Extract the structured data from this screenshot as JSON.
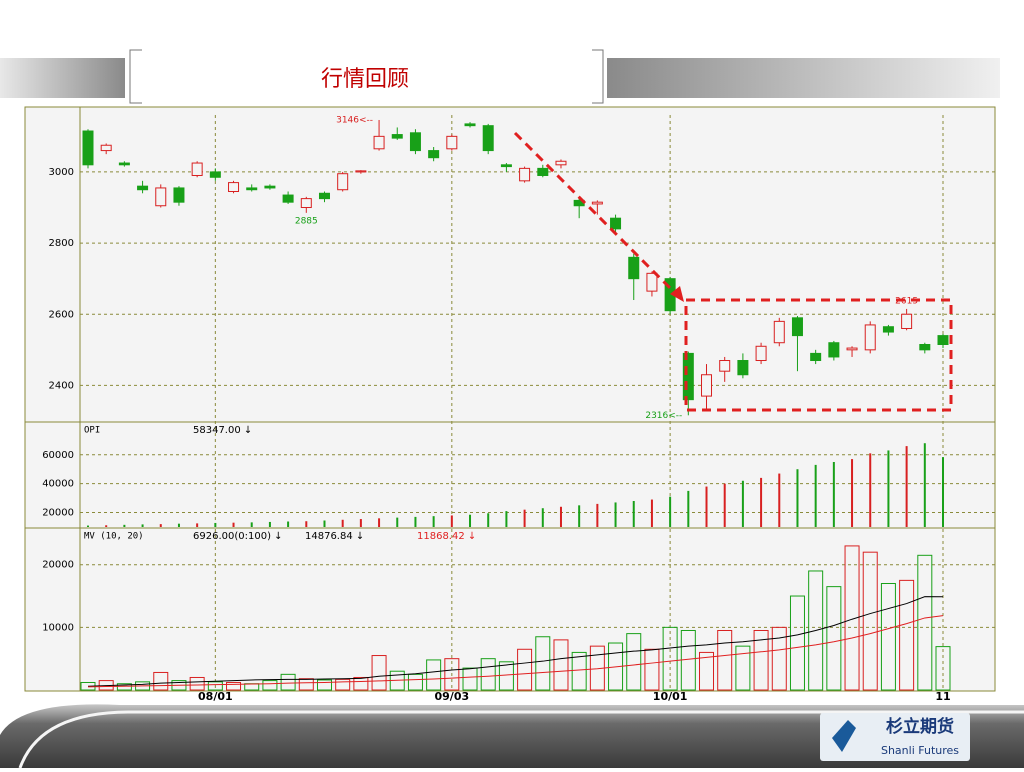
{
  "header": {
    "title": "行情回顾"
  },
  "logo": {
    "name": "杉立期货",
    "name_en": "Shanli Futures"
  },
  "chart_data": [
    {
      "type": "candlestick",
      "categories": [
        null,
        null,
        null,
        null,
        null,
        null,
        null,
        "08/01",
        null,
        null,
        null,
        null,
        null,
        null,
        null,
        null,
        null,
        null,
        null,
        null,
        "09/03",
        null,
        null,
        null,
        null,
        null,
        null,
        null,
        null,
        null,
        null,
        null,
        "10/01",
        null,
        null,
        null,
        null,
        null,
        null,
        null,
        null,
        null,
        null,
        null,
        null,
        null,
        null,
        "11"
      ],
      "open": [
        3115,
        3060,
        3025,
        2960,
        2905,
        2955,
        2990,
        3000,
        2945,
        2955,
        2960,
        2935,
        2900,
        2940,
        2950,
        3000,
        3065,
        3105,
        3110,
        3060,
        3065,
        3135,
        3130,
        3020,
        2975,
        3010,
        3020,
        2920,
        2910,
        2870,
        2760,
        2665,
        2700,
        2490,
        2370,
        2440,
        2470,
        2470,
        2520,
        2590,
        2490,
        2520,
        2500,
        2500,
        2565,
        2560,
        2515,
        2540
      ],
      "high": [
        3120,
        3080,
        3030,
        2975,
        2965,
        2960,
        3030,
        3010,
        2975,
        2965,
        2965,
        2945,
        2930,
        2945,
        3000,
        3005,
        3146,
        3125,
        3120,
        3070,
        3105,
        3140,
        3135,
        3025,
        3015,
        3020,
        3035,
        2930,
        2920,
        2880,
        2770,
        2720,
        2705,
        2495,
        2460,
        2480,
        2490,
        2520,
        2590,
        2595,
        2500,
        2525,
        2510,
        2580,
        2570,
        2615,
        2520,
        2545
      ],
      "low": [
        3010,
        3050,
        3015,
        2940,
        2900,
        2905,
        2985,
        2975,
        2940,
        2945,
        2950,
        2910,
        2885,
        2915,
        2945,
        2995,
        3060,
        3090,
        3050,
        3030,
        3060,
        3125,
        3050,
        3000,
        2970,
        2985,
        3010,
        2870,
        2880,
        2830,
        2640,
        2650,
        2600,
        2316,
        2330,
        2410,
        2420,
        2460,
        2510,
        2440,
        2460,
        2470,
        2480,
        2490,
        2540,
        2555,
        2490,
        2505
      ],
      "close": [
        3020,
        3075,
        3020,
        2950,
        2955,
        2915,
        3025,
        2985,
        2970,
        2950,
        2955,
        2915,
        2925,
        2925,
        2995,
        3003,
        3100,
        3095,
        3060,
        3040,
        3100,
        3130,
        3060,
        3015,
        3010,
        2990,
        3030,
        2905,
        2915,
        2840,
        2700,
        2715,
        2610,
        2360,
        2430,
        2470,
        2430,
        2510,
        2580,
        2540,
        2470,
        2480,
        2505,
        2570,
        2550,
        2600,
        2500,
        2515
      ],
      "up_color": "#d82020",
      "down_color": "#18a018",
      "ylim": [
        2300,
        3160
      ],
      "yticks": [
        2400,
        2600,
        2800,
        3000
      ],
      "grid": true,
      "annotations": [
        {
          "text": "3146<--",
          "value": 3146,
          "color": "#d82020"
        },
        {
          "text": "2885",
          "value": 2885,
          "color": "#18a018"
        },
        {
          "text": "2316<--",
          "value": 2316,
          "color": "#18a018"
        },
        {
          "text": "2615",
          "value": 2615,
          "color": "#d82020"
        }
      ]
    },
    {
      "type": "bar",
      "title": "OPI",
      "subtitle": "58347.00 ↓",
      "values": [
        11000,
        11200,
        11500,
        11800,
        12000,
        12300,
        12500,
        12800,
        13000,
        13200,
        13500,
        13800,
        14000,
        14500,
        15000,
        15500,
        16000,
        16500,
        17000,
        17500,
        18000,
        18500,
        19500,
        21000,
        22000,
        23000,
        24000,
        25000,
        26000,
        27000,
        28000,
        29000,
        31000,
        35000,
        38000,
        40000,
        42000,
        44000,
        47000,
        50000,
        53000,
        55000,
        57000,
        61000,
        63000,
        66000,
        68000,
        58347
      ],
      "ylim": [
        10000,
        82000
      ],
      "yticks": [
        20000,
        40000,
        60000
      ],
      "grid": true
    },
    {
      "type": "bar",
      "title": "MV (10, 20)",
      "series": [
        {
          "name": "6926.00(0:100) ↓",
          "color": "#000000",
          "values": [
            1200,
            1500,
            1000,
            1300,
            2800,
            1500,
            2000,
            1300,
            1200,
            1000,
            1500,
            2500,
            1800,
            1600,
            1700,
            2000,
            5500,
            3000,
            2500,
            4800,
            5000,
            3500,
            5000,
            4500,
            6500,
            8500,
            8000,
            6000,
            7000,
            7500,
            9000,
            6500,
            10000,
            9500,
            6000,
            9500,
            7000,
            9500,
            10000,
            15000,
            19000,
            16500,
            23000,
            22000,
            17000,
            17500,
            21500,
            6926
          ]
        },
        {
          "name": "14876.84 ↓",
          "color": "#000000",
          "values": [
            600,
            700,
            800,
            900,
            1100,
            1200,
            1300,
            1400,
            1500,
            1600,
            1650,
            1700,
            1700,
            1750,
            1800,
            1850,
            2200,
            2400,
            2600,
            2900,
            3200,
            3400,
            3700,
            4000,
            4300,
            4600,
            5000,
            5300,
            5600,
            5900,
            6200,
            6400,
            6700,
            7000,
            7200,
            7500,
            7700,
            8000,
            8300,
            8800,
            9500,
            10300,
            11300,
            12200,
            13000,
            13800,
            14900,
            14876.84
          ]
        },
        {
          "name": "11868.42 ↓",
          "color": "#e02020",
          "values": [
            500,
            550,
            600,
            650,
            700,
            750,
            800,
            850,
            900,
            950,
            1000,
            1100,
            1150,
            1200,
            1300,
            1350,
            1450,
            1550,
            1650,
            1750,
            1900,
            2050,
            2200,
            2400,
            2600,
            2800,
            3000,
            3200,
            3400,
            3700,
            4000,
            4300,
            4600,
            4900,
            5200,
            5500,
            5800,
            6100,
            6400,
            6800,
            7200,
            7700,
            8300,
            9000,
            9800,
            10600,
            11500,
            11868.42
          ]
        }
      ],
      "ylim": [
        0,
        25700
      ],
      "yticks": [
        10000,
        20000
      ],
      "grid": true
    }
  ]
}
